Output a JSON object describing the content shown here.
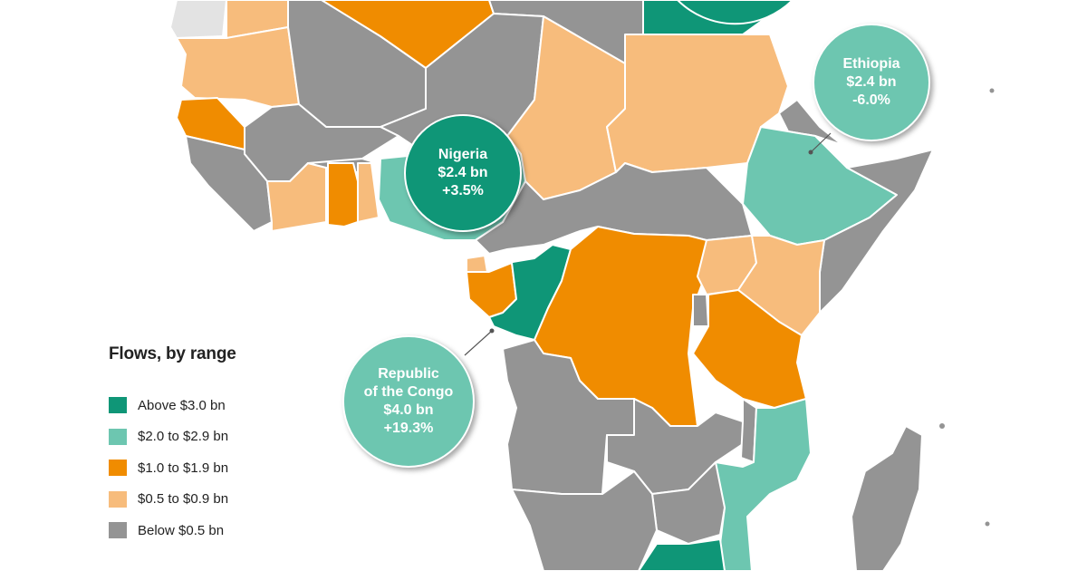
{
  "colors": {
    "above_3": "#0f9677",
    "r2_29": "#6dc6b0",
    "r1_19": "#f08c00",
    "r05_09": "#f7bc7c",
    "below_05": "#949494",
    "no_data": "#e3e3e3",
    "callout_teal": "#6dc6b0",
    "callout_dark": "#0f9677"
  },
  "legend": {
    "title": "Flows, by range",
    "items": [
      {
        "label": "Above $3.0 bn",
        "color": "#0f9677"
      },
      {
        "label": "$2.0 to $2.9 bn",
        "color": "#6dc6b0"
      },
      {
        "label": "$1.0 to $1.9 bn",
        "color": "#f08c00"
      },
      {
        "label": "$0.5 to $0.9 bn",
        "color": "#f7bc7c"
      },
      {
        "label": "Below $0.5 bn",
        "color": "#949494"
      }
    ]
  },
  "callouts": {
    "ethiopia": {
      "name": "Ethiopia",
      "value": "$2.4 bn",
      "change": "-6.0%"
    },
    "nigeria": {
      "name": "Nigeria",
      "value": "$2.4 bn",
      "change": "+3.5%"
    },
    "congo": {
      "name_line1": "Republic",
      "name_line2": "of the Congo",
      "value": "$4.0 bn",
      "change": "+19.3%"
    }
  }
}
